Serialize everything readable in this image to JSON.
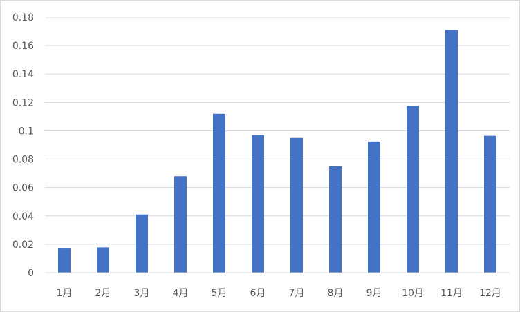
{
  "chart_data": {
    "type": "bar",
    "title": "",
    "xlabel": "",
    "ylabel": "",
    "categories": [
      "1月",
      "2月",
      "3月",
      "4月",
      "5月",
      "6月",
      "7月",
      "8月",
      "9月",
      "10月",
      "11月",
      "12月"
    ],
    "values": [
      0.017,
      0.0178,
      0.041,
      0.068,
      0.112,
      0.097,
      0.095,
      0.075,
      0.0925,
      0.1175,
      0.171,
      0.0965
    ],
    "ylim": [
      0,
      0.18
    ],
    "yticks": [
      0,
      0.02,
      0.04,
      0.06,
      0.08,
      0.1,
      0.12,
      0.14,
      0.16,
      0.18
    ],
    "ytick_labels": [
      "0",
      "0.02",
      "0.04",
      "0.06",
      "0.08",
      "0.1",
      "0.12",
      "0.14",
      "0.16",
      "0.18"
    ],
    "grid": true,
    "legend": "none",
    "colors": {
      "bar": "#4472C4",
      "grid": "#d9d9d9",
      "axis": "#d9d9d9",
      "text": "#595959"
    }
  }
}
